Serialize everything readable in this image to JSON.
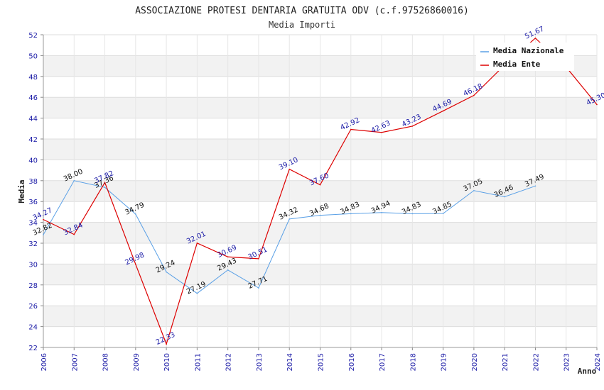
{
  "chart_data": {
    "type": "line",
    "title": "ASSOCIAZIONE PROTESI DENTARIA GRATUITA ODV (c.f.97526860016)",
    "subtitle": "Media Importi",
    "xlabel": "Anno",
    "ylabel": "Media",
    "ylim": [
      22,
      52
    ],
    "ytick_step": 2,
    "grid": true,
    "legend_position": "top-right",
    "x": [
      "2006",
      "2007",
      "2008",
      "2009",
      "2010",
      "2011",
      "2012",
      "2013",
      "2014",
      "2015",
      "2016",
      "2017",
      "2018",
      "2019",
      "2020",
      "2021",
      "2022",
      "2023",
      "2024"
    ],
    "series": [
      {
        "name": "Media Nazionale",
        "color": "#5aa0e6",
        "label_color": "#111111",
        "values": [
          32.82,
          38.0,
          37.36,
          34.79,
          29.24,
          27.19,
          29.43,
          27.71,
          34.32,
          34.68,
          34.83,
          34.94,
          34.83,
          34.85,
          37.05,
          36.46,
          37.49,
          null,
          null
        ],
        "labels": [
          "32.82",
          "38.00",
          "37.36",
          "34.79",
          "29.24",
          "27.19",
          "29.43",
          "27.71",
          "34.32",
          "34.68",
          "34.83",
          "34.94",
          "34.83",
          "34.85",
          "37.05",
          "36.46",
          "37.49",
          "",
          ""
        ]
      },
      {
        "name": "Media Ente",
        "color": "#dd0000",
        "label_color": "#1a1aa6",
        "values": [
          34.27,
          32.84,
          37.82,
          29.98,
          22.33,
          32.01,
          30.69,
          30.51,
          39.1,
          37.6,
          42.92,
          42.63,
          43.23,
          44.69,
          46.18,
          49.1,
          51.67,
          48.9,
          45.3
        ],
        "labels": [
          "34.27",
          "32.84",
          "37.82",
          "29.98",
          "22.33",
          "32.01",
          "30.69",
          "30.51",
          "39.10",
          "37.60",
          "42.92",
          "42.63",
          "43.23",
          "44.69",
          "46.18",
          "",
          "51.67",
          "",
          "45.30"
        ]
      }
    ]
  }
}
